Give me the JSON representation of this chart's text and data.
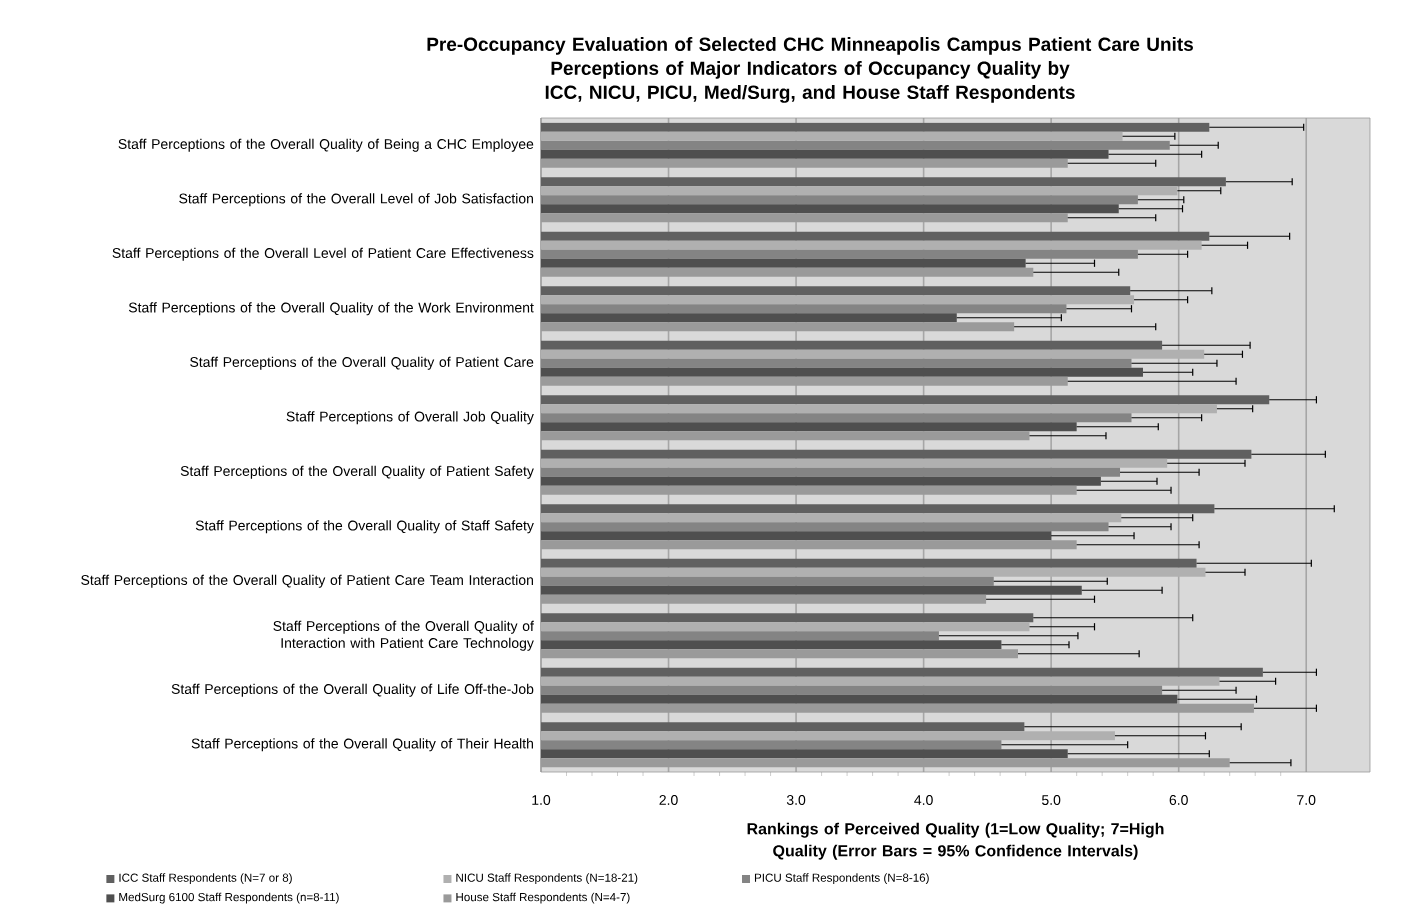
{
  "chart_data": {
    "type": "bar",
    "orientation": "horizontal",
    "title": "Pre-Occupancy Evaluation of Selected CHC Minneapolis Campus Patient Care Units",
    "subtitle": "Perceptions of Major Indicators of Occupancy Quality by ICC, NICU, PICU, Med/Surg, and House Staff Respondents",
    "xlabel": "Rankings of Perceived Quality (1=Low Quality; 7=High Quality (Error Bars = 95% Confidence Intervals)",
    "categories": [
      "Staff Perceptions of the Overall Quality of Being a CHC Employee",
      "Staff Perceptions of the Overall Level of Job Satisfaction",
      "Staff Perceptions of the Overall Level of Patient Care Effectiveness",
      "Staff Perceptions of the Overall Quality of the Work Environment",
      "Staff Perceptions of the Overall Quality of Patient Care",
      "Staff Perceptions of Overall Job Quality",
      "Staff Perceptions of the Overall Quality of Patient Safety",
      "Staff Perceptions of the Overall Quality of Staff Safety",
      "Staff Perceptions of the Overall Quality of Patient Care Team Interaction",
      "Staff Perceptions of the Overall Quality of Interaction with Patient Care Technology",
      "Staff Perceptions of the Overall Quality of Life Off-the-Job",
      "Staff Perceptions of the Overall Quality of Their Health"
    ],
    "series": [
      {
        "name": "ICC Staff Respondents  (N=7 or 8)",
        "color": "#606060",
        "values": [
          6.24,
          6.37,
          6.24,
          5.62,
          5.87,
          6.71,
          6.57,
          6.28,
          6.14,
          4.86,
          6.66,
          4.79
        ],
        "errors": [
          [
            6.24,
            6.98
          ],
          [
            6.37,
            6.89
          ],
          [
            6.24,
            6.87
          ],
          [
            5.62,
            6.26
          ],
          [
            5.87,
            6.56
          ],
          [
            6.71,
            7.08
          ],
          [
            6.57,
            7.15
          ],
          [
            6.28,
            7.22
          ],
          [
            6.14,
            7.04
          ],
          [
            4.86,
            6.11
          ],
          [
            6.66,
            7.08
          ],
          [
            4.79,
            6.49
          ]
        ]
      },
      {
        "name": "NICU Staff Respondents  (N=18-21)",
        "color": "#b0b0b0",
        "values": [
          5.56,
          5.99,
          6.18,
          5.65,
          6.2,
          6.3,
          5.91,
          5.55,
          6.21,
          4.83,
          6.32,
          5.5
        ],
        "errors": [
          [
            5.56,
            5.97
          ],
          [
            5.99,
            6.33
          ],
          [
            6.18,
            6.54
          ],
          [
            5.65,
            6.07
          ],
          [
            6.2,
            6.5
          ],
          [
            6.3,
            6.58
          ],
          [
            5.91,
            6.52
          ],
          [
            5.55,
            6.11
          ],
          [
            6.21,
            6.52
          ],
          [
            4.83,
            5.34
          ],
          [
            6.32,
            6.76
          ],
          [
            5.5,
            6.21
          ]
        ]
      },
      {
        "name": "PICU Staff Respondents  (N=8-16)",
        "color": "#848484",
        "values": [
          5.93,
          5.68,
          5.68,
          5.12,
          5.63,
          5.63,
          5.54,
          5.45,
          4.55,
          4.12,
          5.87,
          4.61
        ],
        "errors": [
          [
            5.93,
            6.31
          ],
          [
            5.68,
            6.04
          ],
          [
            5.68,
            6.07
          ],
          [
            5.12,
            5.63
          ],
          [
            5.63,
            6.3
          ],
          [
            5.63,
            6.18
          ],
          [
            5.54,
            6.16
          ],
          [
            5.45,
            5.94
          ],
          [
            4.55,
            5.44
          ],
          [
            4.12,
            5.21
          ],
          [
            5.87,
            6.45
          ],
          [
            4.61,
            5.6
          ]
        ]
      },
      {
        "name": "MedSurg 6100 Staff Respondents  (n=8-11)",
        "color": "#4f4f4f",
        "values": [
          5.45,
          5.53,
          4.8,
          4.26,
          5.72,
          5.2,
          5.39,
          5.0,
          5.24,
          4.61,
          5.99,
          5.13
        ],
        "errors": [
          [
            5.45,
            6.18
          ],
          [
            5.53,
            6.03
          ],
          [
            4.8,
            5.34
          ],
          [
            4.26,
            5.08
          ],
          [
            5.72,
            6.11
          ],
          [
            5.2,
            5.84
          ],
          [
            5.39,
            5.83
          ],
          [
            5.0,
            5.65
          ],
          [
            5.24,
            5.87
          ],
          [
            4.61,
            5.14
          ],
          [
            5.99,
            6.61
          ],
          [
            5.13,
            6.24
          ]
        ]
      },
      {
        "name": "House Staff Respondents  (N=4-7)",
        "color": "#9a9a9a",
        "values": [
          5.13,
          5.13,
          4.86,
          4.71,
          5.13,
          4.83,
          5.2,
          5.2,
          4.49,
          4.74,
          6.59,
          6.4
        ],
        "errors": [
          [
            5.13,
            5.82
          ],
          [
            5.13,
            5.82
          ],
          [
            4.86,
            5.53
          ],
          [
            4.71,
            5.82
          ],
          [
            5.13,
            6.45
          ],
          [
            4.83,
            5.43
          ],
          [
            5.2,
            5.94
          ],
          [
            5.2,
            6.16
          ],
          [
            4.49,
            5.34
          ],
          [
            4.74,
            5.69
          ],
          [
            6.59,
            7.08
          ],
          [
            6.4,
            6.88
          ]
        ]
      }
    ],
    "xlim": [
      1,
      7.5
    ],
    "xticks": [
      {
        "value": 1,
        "label": "1.0"
      },
      {
        "value": 2,
        "label": "2.0"
      },
      {
        "value": 3,
        "label": "3.0"
      },
      {
        "value": 4,
        "label": "4.0"
      },
      {
        "value": 5,
        "label": "5.0"
      },
      {
        "value": 6,
        "label": "6.0"
      },
      {
        "value": 7,
        "label": "7.0"
      }
    ],
    "grid": "x",
    "legend": "bottom"
  }
}
